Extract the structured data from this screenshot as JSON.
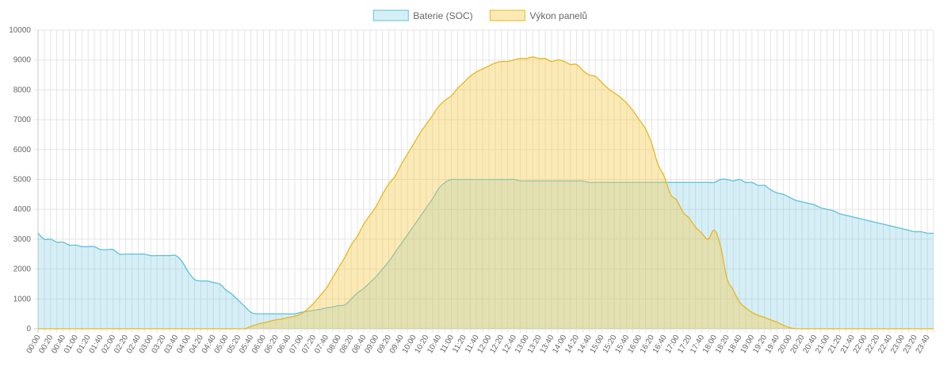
{
  "chart_data": {
    "type": "area",
    "x_unit": "time of day",
    "x_tick_step_minutes": 10,
    "x_tick_label_every_minutes": 20,
    "ylim": [
      0,
      10000
    ],
    "y_ticks": [
      0,
      1000,
      2000,
      3000,
      4000,
      5000,
      6000,
      7000,
      8000,
      9000,
      10000
    ],
    "grid": true,
    "legend_position": "top-center",
    "series": [
      {
        "name": "Baterie (SOC)",
        "color": "#5bc0de",
        "fill": "rgba(91,192,222,0.25)",
        "points": [
          [
            "00:00",
            3200
          ],
          [
            "00:10",
            3000
          ],
          [
            "00:20",
            3000
          ],
          [
            "00:30",
            2900
          ],
          [
            "00:40",
            2900
          ],
          [
            "00:50",
            2800
          ],
          [
            "01:00",
            2800
          ],
          [
            "01:10",
            2750
          ],
          [
            "01:20",
            2750
          ],
          [
            "01:30",
            2750
          ],
          [
            "01:40",
            2650
          ],
          [
            "01:50",
            2650
          ],
          [
            "02:00",
            2650
          ],
          [
            "02:10",
            2500
          ],
          [
            "02:20",
            2500
          ],
          [
            "02:30",
            2500
          ],
          [
            "02:40",
            2500
          ],
          [
            "02:50",
            2500
          ],
          [
            "03:00",
            2450
          ],
          [
            "03:10",
            2450
          ],
          [
            "03:20",
            2450
          ],
          [
            "03:30",
            2450
          ],
          [
            "03:40",
            2450
          ],
          [
            "03:50",
            2250
          ],
          [
            "04:00",
            1900
          ],
          [
            "04:10",
            1650
          ],
          [
            "04:20",
            1600
          ],
          [
            "04:30",
            1600
          ],
          [
            "04:40",
            1550
          ],
          [
            "04:50",
            1500
          ],
          [
            "05:00",
            1300
          ],
          [
            "05:10",
            1150
          ],
          [
            "05:20",
            950
          ],
          [
            "05:30",
            750
          ],
          [
            "05:40",
            550
          ],
          [
            "05:50",
            500
          ],
          [
            "06:00",
            500
          ],
          [
            "06:10",
            500
          ],
          [
            "06:20",
            500
          ],
          [
            "06:30",
            500
          ],
          [
            "06:40",
            500
          ],
          [
            "06:50",
            500
          ],
          [
            "07:00",
            550
          ],
          [
            "07:10",
            580
          ],
          [
            "07:20",
            620
          ],
          [
            "07:30",
            650
          ],
          [
            "07:40",
            700
          ],
          [
            "07:50",
            730
          ],
          [
            "08:00",
            780
          ],
          [
            "08:10",
            800
          ],
          [
            "08:20",
            1000
          ],
          [
            "08:30",
            1200
          ],
          [
            "08:40",
            1350
          ],
          [
            "08:50",
            1550
          ],
          [
            "09:00",
            1750
          ],
          [
            "09:10",
            2000
          ],
          [
            "09:20",
            2250
          ],
          [
            "09:30",
            2550
          ],
          [
            "09:40",
            2850
          ],
          [
            "09:50",
            3150
          ],
          [
            "10:00",
            3450
          ],
          [
            "10:10",
            3750
          ],
          [
            "10:20",
            4050
          ],
          [
            "10:30",
            4350
          ],
          [
            "10:40",
            4700
          ],
          [
            "10:50",
            4900
          ],
          [
            "11:00",
            5000
          ],
          [
            "11:10",
            5000
          ],
          [
            "11:20",
            5000
          ],
          [
            "11:30",
            5000
          ],
          [
            "11:40",
            5000
          ],
          [
            "11:50",
            5000
          ],
          [
            "12:00",
            5000
          ],
          [
            "12:10",
            5000
          ],
          [
            "12:20",
            5000
          ],
          [
            "12:30",
            5000
          ],
          [
            "12:40",
            5000
          ],
          [
            "12:50",
            4950
          ],
          [
            "13:00",
            4950
          ],
          [
            "13:10",
            4950
          ],
          [
            "13:20",
            4950
          ],
          [
            "13:30",
            4950
          ],
          [
            "13:40",
            4950
          ],
          [
            "13:50",
            4950
          ],
          [
            "14:00",
            4950
          ],
          [
            "14:10",
            4950
          ],
          [
            "14:20",
            4950
          ],
          [
            "14:30",
            4950
          ],
          [
            "14:40",
            4900
          ],
          [
            "14:50",
            4900
          ],
          [
            "15:00",
            4900
          ],
          [
            "15:10",
            4900
          ],
          [
            "15:20",
            4900
          ],
          [
            "15:30",
            4900
          ],
          [
            "15:40",
            4900
          ],
          [
            "15:50",
            4900
          ],
          [
            "16:00",
            4900
          ],
          [
            "16:10",
            4900
          ],
          [
            "16:20",
            4900
          ],
          [
            "16:30",
            4900
          ],
          [
            "16:40",
            4900
          ],
          [
            "16:50",
            4900
          ],
          [
            "17:00",
            4900
          ],
          [
            "17:10",
            4900
          ],
          [
            "17:20",
            4900
          ],
          [
            "17:30",
            4900
          ],
          [
            "17:40",
            4900
          ],
          [
            "17:50",
            4900
          ],
          [
            "18:00",
            4900
          ],
          [
            "18:10",
            5000
          ],
          [
            "18:20",
            5000
          ],
          [
            "18:30",
            4950
          ],
          [
            "18:40",
            5000
          ],
          [
            "18:50",
            4900
          ],
          [
            "19:00",
            4900
          ],
          [
            "19:10",
            4800
          ],
          [
            "19:20",
            4800
          ],
          [
            "19:30",
            4650
          ],
          [
            "19:40",
            4550
          ],
          [
            "19:50",
            4500
          ],
          [
            "20:00",
            4400
          ],
          [
            "20:10",
            4300
          ],
          [
            "20:20",
            4250
          ],
          [
            "20:30",
            4200
          ],
          [
            "20:40",
            4150
          ],
          [
            "20:50",
            4050
          ],
          [
            "21:00",
            4000
          ],
          [
            "21:10",
            3950
          ],
          [
            "21:20",
            3850
          ],
          [
            "21:30",
            3800
          ],
          [
            "21:40",
            3750
          ],
          [
            "21:50",
            3700
          ],
          [
            "22:00",
            3650
          ],
          [
            "22:10",
            3600
          ],
          [
            "22:20",
            3550
          ],
          [
            "22:30",
            3500
          ],
          [
            "22:40",
            3450
          ],
          [
            "22:50",
            3400
          ],
          [
            "23:00",
            3350
          ],
          [
            "23:10",
            3300
          ],
          [
            "23:20",
            3250
          ],
          [
            "23:30",
            3250
          ],
          [
            "23:40",
            3200
          ],
          [
            "23:50",
            3200
          ]
        ]
      },
      {
        "name": "Výkon panelů",
        "color": "#e8b71a",
        "fill": "rgba(248,203,72,0.4)",
        "points": [
          [
            "00:00",
            0
          ],
          [
            "00:10",
            0
          ],
          [
            "00:20",
            0
          ],
          [
            "00:30",
            0
          ],
          [
            "00:40",
            0
          ],
          [
            "00:50",
            0
          ],
          [
            "01:00",
            0
          ],
          [
            "01:10",
            0
          ],
          [
            "01:20",
            0
          ],
          [
            "01:30",
            0
          ],
          [
            "01:40",
            0
          ],
          [
            "01:50",
            0
          ],
          [
            "02:00",
            0
          ],
          [
            "02:10",
            0
          ],
          [
            "02:20",
            0
          ],
          [
            "02:30",
            0
          ],
          [
            "02:40",
            0
          ],
          [
            "02:50",
            0
          ],
          [
            "03:00",
            0
          ],
          [
            "03:10",
            0
          ],
          [
            "03:20",
            0
          ],
          [
            "03:30",
            0
          ],
          [
            "03:40",
            0
          ],
          [
            "03:50",
            0
          ],
          [
            "04:00",
            0
          ],
          [
            "04:10",
            0
          ],
          [
            "04:20",
            0
          ],
          [
            "04:30",
            0
          ],
          [
            "04:40",
            0
          ],
          [
            "04:50",
            0
          ],
          [
            "05:00",
            0
          ],
          [
            "05:10",
            0
          ],
          [
            "05:20",
            0
          ],
          [
            "05:30",
            0
          ],
          [
            "05:40",
            80
          ],
          [
            "05:50",
            150
          ],
          [
            "06:00",
            200
          ],
          [
            "06:10",
            250
          ],
          [
            "06:20",
            300
          ],
          [
            "06:30",
            330
          ],
          [
            "06:40",
            380
          ],
          [
            "06:50",
            420
          ],
          [
            "07:00",
            500
          ],
          [
            "07:10",
            650
          ],
          [
            "07:20",
            850
          ],
          [
            "07:30",
            1100
          ],
          [
            "07:40",
            1350
          ],
          [
            "07:50",
            1700
          ],
          [
            "08:00",
            2050
          ],
          [
            "08:10",
            2400
          ],
          [
            "08:20",
            2800
          ],
          [
            "08:30",
            3100
          ],
          [
            "08:40",
            3500
          ],
          [
            "08:50",
            3800
          ],
          [
            "09:00",
            4100
          ],
          [
            "09:10",
            4500
          ],
          [
            "09:20",
            4850
          ],
          [
            "09:30",
            5100
          ],
          [
            "09:40",
            5500
          ],
          [
            "09:50",
            5850
          ],
          [
            "10:00",
            6200
          ],
          [
            "10:10",
            6550
          ],
          [
            "10:20",
            6850
          ],
          [
            "10:30",
            7150
          ],
          [
            "10:40",
            7450
          ],
          [
            "10:50",
            7650
          ],
          [
            "11:00",
            7800
          ],
          [
            "11:10",
            8050
          ],
          [
            "11:20",
            8250
          ],
          [
            "11:30",
            8450
          ],
          [
            "11:40",
            8600
          ],
          [
            "11:50",
            8700
          ],
          [
            "12:00",
            8800
          ],
          [
            "12:10",
            8900
          ],
          [
            "12:20",
            8950
          ],
          [
            "12:30",
            8950
          ],
          [
            "12:40",
            9000
          ],
          [
            "12:50",
            9050
          ],
          [
            "13:00",
            9050
          ],
          [
            "13:10",
            9100
          ],
          [
            "13:20",
            9050
          ],
          [
            "13:30",
            9050
          ],
          [
            "13:40",
            8950
          ],
          [
            "13:50",
            9000
          ],
          [
            "14:00",
            8950
          ],
          [
            "14:10",
            8850
          ],
          [
            "14:20",
            8850
          ],
          [
            "14:30",
            8650
          ],
          [
            "14:40",
            8500
          ],
          [
            "14:50",
            8450
          ],
          [
            "15:00",
            8250
          ],
          [
            "15:10",
            8050
          ],
          [
            "15:20",
            7900
          ],
          [
            "15:30",
            7750
          ],
          [
            "15:40",
            7550
          ],
          [
            "15:50",
            7300
          ],
          [
            "16:00",
            7000
          ],
          [
            "16:10",
            6700
          ],
          [
            "16:20",
            6200
          ],
          [
            "16:30",
            5500
          ],
          [
            "16:40",
            5100
          ],
          [
            "16:50",
            4500
          ],
          [
            "17:00",
            4300
          ],
          [
            "17:10",
            3900
          ],
          [
            "17:20",
            3700
          ],
          [
            "17:30",
            3400
          ],
          [
            "17:40",
            3200
          ],
          [
            "17:50",
            3000
          ],
          [
            "18:00",
            3300
          ],
          [
            "18:10",
            2750
          ],
          [
            "18:20",
            1700
          ],
          [
            "18:30",
            1300
          ],
          [
            "18:40",
            900
          ],
          [
            "18:50",
            700
          ],
          [
            "19:00",
            550
          ],
          [
            "19:10",
            450
          ],
          [
            "19:20",
            380
          ],
          [
            "19:30",
            300
          ],
          [
            "19:40",
            220
          ],
          [
            "19:50",
            120
          ],
          [
            "20:00",
            40
          ],
          [
            "20:10",
            0
          ],
          [
            "20:20",
            0
          ],
          [
            "20:30",
            0
          ],
          [
            "20:40",
            0
          ],
          [
            "20:50",
            0
          ],
          [
            "21:00",
            0
          ],
          [
            "21:10",
            0
          ],
          [
            "21:20",
            0
          ],
          [
            "21:30",
            0
          ],
          [
            "21:40",
            0
          ],
          [
            "21:50",
            0
          ],
          [
            "22:00",
            0
          ],
          [
            "22:10",
            0
          ],
          [
            "22:20",
            0
          ],
          [
            "22:30",
            0
          ],
          [
            "22:40",
            0
          ],
          [
            "22:50",
            0
          ],
          [
            "23:00",
            0
          ],
          [
            "23:10",
            0
          ],
          [
            "23:20",
            0
          ],
          [
            "23:30",
            0
          ],
          [
            "23:40",
            0
          ],
          [
            "23:50",
            0
          ]
        ]
      }
    ]
  }
}
